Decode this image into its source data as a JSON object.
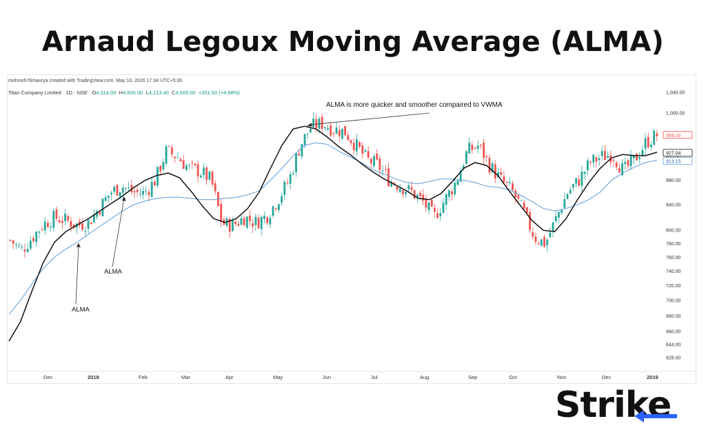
{
  "page_title": "Arnaud Legoux Moving Average (ALMA)",
  "credit": "mohnish76maurya created with TradingView.com, May 10, 2026 17:34 UTC+5:30",
  "legend": {
    "symbol": "Titan Company Limited · 1D · NSE",
    "o_label": "O",
    "o_value": "4,314.00",
    "h_label": "H",
    "h_value": "4,605.00",
    "l_label": "L",
    "l_value": "4,213.40",
    "c_label": "C",
    "c_value": "4,509.00",
    "change": "+201.50 (+4.68%)"
  },
  "brand": {
    "text_main": "Strik",
    "text_tail": "e"
  },
  "colors": {
    "up": "#26a69a",
    "down": "#ef5350",
    "alma": "#111111",
    "vwma": "#5b9bd5",
    "brand_accent": "#2962ff",
    "last_price": "#ef5350"
  },
  "chart_data": {
    "type": "line",
    "title": "",
    "symbol": "Titan Company Limited · 1D · NSE",
    "x_ticks": [
      "Dec",
      "2018",
      "Feb",
      "Mar",
      "Apr",
      "May",
      "Jun",
      "Jul",
      "Aug",
      "Sep",
      "Oct",
      "Nov",
      "Dec",
      "2019"
    ],
    "y_ticks": [
      628,
      644,
      660,
      680,
      700,
      720,
      740,
      760,
      780,
      800,
      840,
      880,
      920,
      960,
      1000,
      1040
    ],
    "y_tick_labels": [
      "628.00",
      "644.00",
      "660.00",
      "680.00",
      "700.00",
      "720.00",
      "740.00",
      "760.00",
      "780.00",
      "800.00",
      "840.00",
      "880.00",
      "920.00",
      "960.00",
      "1,000.00",
      "1,040.00"
    ],
    "ylim": [
      615,
      1055
    ],
    "y_scale": "log",
    "price_labels": {
      "last": "959.10",
      "alma": "927.04",
      "vwma": "913.15"
    },
    "series": [
      {
        "name": "ALMA",
        "values": [
          648,
          672,
          712,
          752,
          782,
          798,
          808,
          818,
          830,
          842,
          854,
          868,
          880,
          888,
          892,
          884,
          862,
          838,
          818,
          812,
          818,
          834,
          860,
          900,
          940,
          970,
          975,
          970,
          955,
          938,
          924,
          908,
          894,
          882,
          872,
          862,
          850,
          848,
          858,
          878,
          900,
          910,
          905,
          888,
          862,
          838,
          815,
          800,
          798,
          818,
          848,
          876,
          900,
          918,
          924,
          922,
          922,
          928
        ]
      },
      {
        "name": "VWMA",
        "values": [
          682,
          700,
          722,
          744,
          760,
          772,
          782,
          794,
          806,
          818,
          830,
          840,
          846,
          850,
          852,
          852,
          850,
          848,
          848,
          850,
          852,
          856,
          862,
          880,
          900,
          922,
          940,
          945,
          942,
          930,
          920,
          910,
          898,
          890,
          882,
          876,
          874,
          878,
          882,
          882,
          880,
          876,
          870,
          868,
          864,
          855,
          845,
          834,
          830,
          834,
          840,
          848,
          860,
          880,
          892,
          902,
          910,
          914
        ]
      }
    ],
    "annotations": [
      {
        "text": "ALMA is more quicker and smoother compaired to VWMA",
        "target_series": "ALMA",
        "target_index": 26,
        "anchor_price": 1012
      },
      {
        "text": "ALMA",
        "target_series": "ALMA",
        "target_index": 10,
        "anchor_price": 763
      },
      {
        "text": "ALMA",
        "target_series": "VWMA",
        "target_index": 6,
        "anchor_price": 710
      }
    ],
    "candles_close": [
      785,
      770,
      790,
      810,
      820,
      815,
      808,
      812,
      835,
      860,
      870,
      860,
      858,
      880,
      930,
      920,
      900,
      895,
      880,
      810,
      808,
      820,
      812,
      822,
      848,
      880,
      940,
      975,
      980,
      970,
      965,
      940,
      915,
      905,
      880,
      870,
      860,
      845,
      820,
      848,
      878,
      930,
      940,
      905,
      880,
      862,
      830,
      790,
      780,
      820,
      860,
      880,
      910,
      920,
      925,
      895,
      915,
      945,
      959
    ]
  }
}
